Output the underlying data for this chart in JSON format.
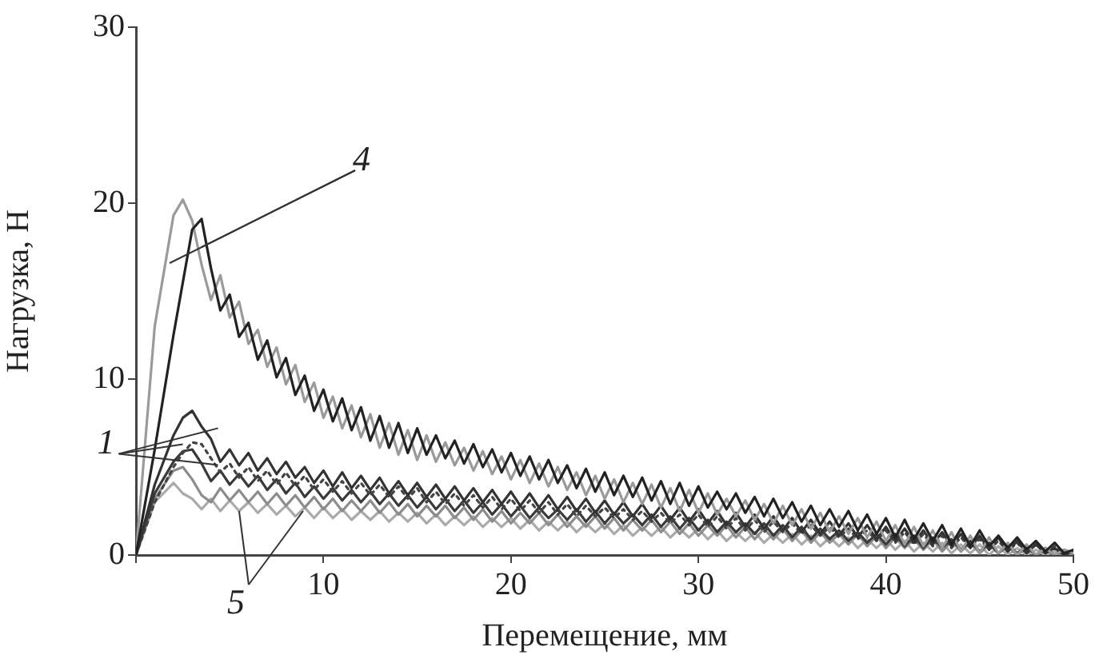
{
  "chart_data": {
    "type": "line",
    "xlabel": "Перемещение, мм",
    "ylabel": "Нагрузка, Н",
    "xlim": [
      0,
      50
    ],
    "xticks": [
      {
        "value": 0,
        "label": null
      },
      10,
      20,
      30,
      40,
      50
    ],
    "ylim": [
      0,
      30
    ],
    "yticks": [
      0,
      10,
      20,
      30
    ],
    "grid": false,
    "legend": false,
    "marker": "none",
    "line_style": "solid",
    "annotations": [
      {
        "text": "1",
        "x": 2.5,
        "y": 6.3
      },
      {
        "text": "4",
        "x": 3.5,
        "y": 17.5
      },
      {
        "text": "5",
        "x": 5.5,
        "y": 2.5
      }
    ],
    "x": [
      0,
      1,
      2,
      2.5,
      3,
      3.5,
      4,
      4.5,
      5,
      5.5,
      6,
      6.5,
      7,
      7.5,
      8,
      8.5,
      9,
      9.5,
      10,
      10.5,
      11,
      11.5,
      12,
      12.5,
      13,
      13.5,
      14,
      14.5,
      15,
      15.5,
      16,
      16.5,
      17,
      17.5,
      18,
      18.5,
      19,
      19.5,
      20,
      20.5,
      21,
      21.5,
      22,
      22.5,
      23,
      23.5,
      24,
      24.5,
      25,
      25.5,
      26,
      26.5,
      27,
      27.5,
      28,
      28.5,
      29,
      29.5,
      30,
      30.5,
      31,
      31.5,
      32,
      32.5,
      33,
      33.5,
      34,
      34.5,
      35,
      35.5,
      36,
      36.5,
      37,
      37.5,
      38,
      38.5,
      39,
      39.5,
      40,
      40.5,
      41,
      41.5,
      42,
      42.5,
      43,
      43.5,
      44,
      44.5,
      45,
      45.5,
      46,
      46.5,
      47,
      47.5,
      48,
      48.5,
      49,
      49.5,
      50
    ],
    "series": [
      {
        "color": "#222222",
        "values": [
          0,
          6,
          12.5,
          15.5,
          18.5,
          19.1,
          16.3,
          13.9,
          14.8,
          12.4,
          13.2,
          11.1,
          12.2,
          10.1,
          11.2,
          9.1,
          10.2,
          8.2,
          9.4,
          7.6,
          8.9,
          7.1,
          8.4,
          6.5,
          7.9,
          6.1,
          7.5,
          5.8,
          7.2,
          5.7,
          6.8,
          5.5,
          6.5,
          5.2,
          6.3,
          5.0,
          6.0,
          4.7,
          5.8,
          4.5,
          5.6,
          4.3,
          5.4,
          4.1,
          5.1,
          3.8,
          4.9,
          3.6,
          4.7,
          3.4,
          4.5,
          3.3,
          4.4,
          3.1,
          4.2,
          2.9,
          4.1,
          2.8,
          3.9,
          2.7,
          3.6,
          2.6,
          3.5,
          2.4,
          3.3,
          2.2,
          3.2,
          2.1,
          3.0,
          1.9,
          2.8,
          1.7,
          2.6,
          1.6,
          2.5,
          1.4,
          2.3,
          1.2,
          2.1,
          1.0,
          2.0,
          0.9,
          1.8,
          0.8,
          1.7,
          0.6,
          1.5,
          0.5,
          1.4,
          0.5,
          1.1,
          0.4,
          1.0,
          0.3,
          0.8,
          0.2,
          0.7,
          0.1,
          0.3
        ]
      },
      {
        "color": "#9a9a9a",
        "values": [
          0,
          13,
          19.3,
          20.2,
          19.0,
          16.5,
          14.5,
          15.9,
          13.5,
          14.4,
          12.0,
          12.8,
          10.7,
          11.8,
          9.7,
          10.8,
          8.7,
          9.8,
          7.8,
          9.0,
          7.2,
          8.5,
          6.7,
          8.0,
          6.1,
          7.5,
          5.7,
          7.1,
          5.4,
          6.8,
          5.3,
          6.4,
          5.1,
          6.1,
          4.8,
          5.9,
          4.6,
          5.6,
          4.3,
          5.4,
          4.1,
          5.2,
          3.9,
          5.0,
          3.7,
          4.7,
          3.4,
          4.5,
          3.2,
          4.3,
          3.0,
          4.1,
          2.9,
          4.0,
          2.7,
          3.8,
          2.5,
          3.7,
          2.4,
          3.5,
          2.3,
          3.2,
          2.2,
          3.1,
          2.0,
          2.9,
          1.8,
          2.8,
          1.7,
          2.6,
          1.5,
          2.4,
          1.3,
          2.2,
          1.2,
          2.1,
          1.0,
          1.9,
          0.8,
          1.7,
          0.6,
          1.6,
          0.5,
          1.4,
          0.4,
          1.3,
          0.2,
          1.1,
          0.1,
          1.0,
          0.1,
          0.7,
          0.0,
          0.6,
          0.0,
          0.4,
          0.0,
          0.3,
          0.1
        ]
      },
      {
        "color": "#333333",
        "values": [
          0,
          4,
          6.8,
          7.8,
          8.2,
          7.3,
          6.6,
          5.3,
          6.0,
          5.1,
          5.8,
          4.8,
          5.5,
          4.6,
          5.3,
          4.4,
          5.0,
          4.1,
          4.8,
          3.9,
          4.7,
          3.8,
          4.5,
          3.7,
          4.4,
          3.5,
          4.2,
          3.4,
          4.1,
          3.3,
          4.0,
          3.2,
          3.9,
          3.1,
          3.8,
          3.0,
          3.7,
          2.9,
          3.6,
          2.8,
          3.5,
          2.7,
          3.4,
          2.6,
          3.3,
          2.5,
          3.2,
          2.4,
          3.1,
          2.3,
          3.0,
          2.2,
          2.9,
          2.1,
          2.8,
          2.0,
          2.7,
          1.9,
          2.6,
          1.8,
          2.5,
          1.7,
          2.4,
          1.6,
          2.3,
          1.5,
          2.2,
          1.4,
          2.1,
          1.3,
          2.0,
          1.2,
          1.9,
          1.1,
          1.8,
          1.0,
          1.7,
          0.9,
          1.6,
          0.8,
          1.5,
          0.7,
          1.4,
          0.6,
          1.3,
          0.5,
          1.2,
          0.4,
          1.1,
          0.3,
          1.0,
          0.2,
          0.8,
          0.1,
          0.6,
          0.1,
          0.4,
          0.0,
          0.2
        ]
      },
      {
        "color": "#444444",
        "line_style": "dotted",
        "values": [
          0,
          3,
          5,
          5.8,
          6.4,
          6.3,
          5.5,
          4.7,
          5.2,
          4.4,
          5.0,
          4.2,
          4.8,
          4.0,
          4.7,
          3.9,
          4.5,
          3.7,
          4.3,
          3.6,
          4.2,
          3.5,
          4.1,
          3.4,
          4.0,
          3.3,
          3.9,
          3.2,
          3.8,
          3.0,
          3.6,
          2.9,
          3.5,
          2.8,
          3.4,
          2.7,
          3.3,
          2.6,
          3.2,
          2.5,
          3.1,
          2.4,
          3.0,
          2.3,
          2.9,
          2.2,
          2.8,
          2.2,
          2.7,
          2.1,
          2.6,
          2.0,
          2.5,
          1.9,
          2.4,
          1.8,
          2.3,
          1.7,
          2.3,
          1.6,
          2.2,
          1.5,
          2.1,
          1.4,
          2.0,
          1.3,
          1.9,
          1.3,
          1.8,
          1.2,
          1.7,
          1.1,
          1.6,
          1.0,
          1.5,
          0.9,
          1.4,
          0.8,
          1.4,
          0.7,
          1.3,
          0.6,
          1.2,
          0.5,
          1.1,
          0.4,
          1.0,
          0.4,
          0.9,
          0.3,
          0.8,
          0.2,
          0.7,
          0.1,
          0.6,
          0.1,
          0.5,
          0.0,
          0.2
        ]
      },
      {
        "color": "#3a3a3a",
        "values": [
          0,
          3.5,
          5.3,
          5.9,
          6.0,
          5.2,
          4.2,
          4.8,
          4.0,
          4.6,
          3.9,
          4.5,
          3.7,
          4.3,
          3.5,
          4.1,
          3.3,
          3.9,
          3.2,
          3.8,
          3.1,
          3.7,
          3.0,
          3.6,
          2.9,
          3.5,
          2.8,
          3.4,
          2.7,
          3.3,
          2.6,
          3.2,
          2.5,
          3.1,
          2.4,
          3.0,
          2.3,
          2.9,
          2.2,
          2.8,
          2.1,
          2.7,
          2.1,
          2.6,
          2.0,
          2.6,
          1.9,
          2.5,
          1.8,
          2.4,
          1.8,
          2.3,
          1.7,
          2.3,
          1.6,
          2.2,
          1.5,
          2.1,
          1.4,
          2.0,
          1.3,
          1.9,
          1.3,
          1.8,
          1.2,
          1.8,
          1.1,
          1.7,
          1.0,
          1.6,
          0.9,
          1.5,
          0.9,
          1.4,
          0.8,
          1.3,
          0.7,
          1.2,
          0.6,
          1.2,
          0.5,
          1.1,
          0.4,
          1.0,
          0.4,
          0.9,
          0.3,
          0.8,
          0.2,
          0.7,
          0.1,
          0.6,
          0.1,
          0.5,
          0.0,
          0.4,
          0.0,
          0.3,
          0.1
        ]
      },
      {
        "color": "#8c8c8c",
        "values": [
          0,
          3.2,
          4.8,
          5.0,
          4.3,
          3.4,
          3.0,
          3.8,
          3.1,
          3.7,
          3.0,
          3.6,
          2.9,
          3.5,
          2.8,
          3.4,
          2.7,
          3.3,
          2.6,
          3.2,
          2.5,
          3.1,
          2.5,
          3.1,
          2.4,
          3.0,
          2.3,
          2.9,
          2.2,
          2.8,
          2.2,
          2.8,
          2.1,
          2.7,
          2.0,
          2.6,
          1.9,
          2.5,
          1.8,
          2.4,
          1.8,
          2.4,
          1.7,
          2.3,
          1.6,
          2.2,
          1.6,
          2.2,
          1.5,
          2.1,
          1.4,
          2.0,
          1.4,
          2.0,
          1.3,
          1.9,
          1.2,
          1.8,
          1.1,
          1.7,
          1.1,
          1.7,
          1.0,
          1.6,
          0.9,
          1.5,
          0.9,
          1.5,
          0.8,
          1.4,
          0.7,
          1.3,
          0.7,
          1.2,
          0.6,
          1.2,
          0.5,
          1.1,
          0.4,
          1.0,
          0.4,
          0.9,
          0.3,
          0.9,
          0.2,
          0.8,
          0.2,
          0.7,
          0.1,
          0.6,
          0.1,
          0.5,
          0.0,
          0.4,
          0.0,
          0.3,
          0.0,
          0.2,
          0.1
        ]
      },
      {
        "color": "#aaaaaa",
        "values": [
          0,
          3.0,
          4.1,
          3.5,
          3.2,
          2.6,
          3.2,
          2.5,
          3.1,
          2.5,
          3.0,
          2.4,
          2.9,
          2.3,
          2.8,
          2.2,
          2.7,
          2.1,
          2.7,
          2.1,
          2.6,
          2.0,
          2.5,
          2.0,
          2.5,
          1.9,
          2.4,
          1.9,
          2.4,
          1.8,
          2.3,
          1.7,
          2.2,
          1.7,
          2.2,
          1.6,
          2.1,
          1.6,
          2.1,
          1.5,
          2.0,
          1.4,
          1.9,
          1.4,
          1.9,
          1.3,
          1.8,
          1.3,
          1.8,
          1.2,
          1.7,
          1.1,
          1.6,
          1.1,
          1.6,
          1.0,
          1.5,
          1.0,
          1.5,
          0.9,
          1.4,
          0.8,
          1.3,
          0.8,
          1.3,
          0.7,
          1.2,
          0.7,
          1.2,
          0.6,
          1.1,
          0.5,
          1.0,
          0.5,
          1.0,
          0.4,
          0.9,
          0.4,
          0.9,
          0.3,
          0.8,
          0.2,
          0.7,
          0.2,
          0.7,
          0.1,
          0.6,
          0.1,
          0.6,
          0.0,
          0.5,
          0.0,
          0.4,
          0.0,
          0.3,
          0.0,
          0.2,
          0.0,
          0.1
        ]
      }
    ]
  }
}
